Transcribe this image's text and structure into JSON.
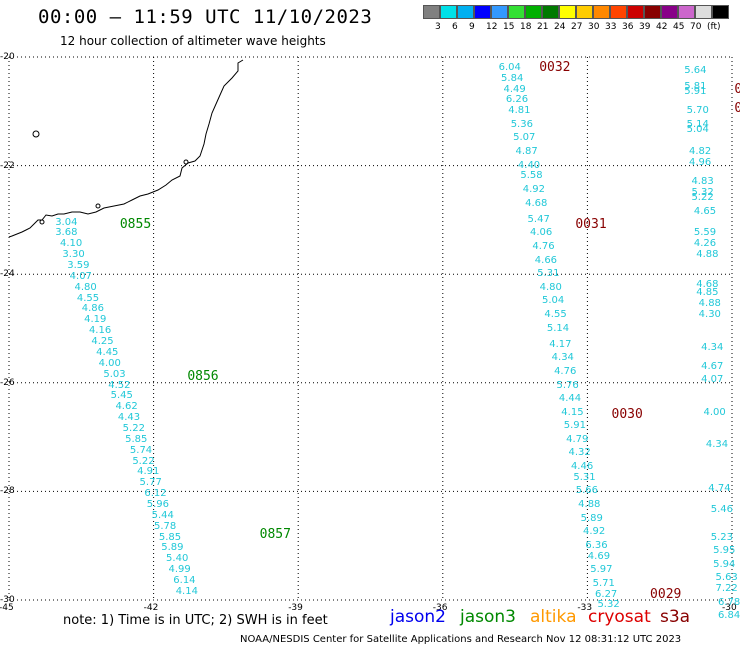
{
  "title": "00:00 – 11:59 UTC 11/10/2023",
  "subtitle": "12 hour collection of altimeter wave heights",
  "color_scale": {
    "colors": [
      "#808080",
      "#00e0e8",
      "#00b0f0",
      "#0000ff",
      "#3399ff",
      "#33e033",
      "#00b000",
      "#007a00",
      "#ffff00",
      "#ffcc00",
      "#ff8800",
      "#ff4400",
      "#cc0000",
      "#880000",
      "#880088",
      "#cc66cc",
      "#dddddd",
      "#000000"
    ],
    "labels": [
      "3",
      "6",
      "9",
      "12",
      "15",
      "18",
      "21",
      "24",
      "27",
      "30",
      "33",
      "36",
      "39",
      "42",
      "45",
      "70",
      "(ft)"
    ]
  },
  "map": {
    "lon_ticks": [
      "-45",
      "-42",
      "-39",
      "-36",
      "-33",
      "-30"
    ],
    "lat_ticks": [
      "-20",
      "-22",
      "-24",
      "-26",
      "-28",
      "-30"
    ],
    "lon_range": [
      -45,
      -30
    ],
    "lat_range": [
      -30,
      -20
    ],
    "grid": "dotted",
    "coastline": "Brazil (southeast coast)"
  },
  "tracks": [
    {
      "satellite": "jason3",
      "time_labels": [
        {
          "text": "0855",
          "lon": -42.7,
          "lat": -23.1
        },
        {
          "text": "0856",
          "lon": -41.3,
          "lat": -25.9
        },
        {
          "text": "0857",
          "lon": -39.8,
          "lat": -28.8
        }
      ],
      "points": [
        {
          "lon": -44.0,
          "lat": -23.05,
          "swh": "3.04"
        },
        {
          "lon": -44.0,
          "lat": -23.25,
          "swh": "3.68"
        },
        {
          "lon": -43.9,
          "lat": -23.45,
          "swh": "4.10"
        },
        {
          "lon": -43.85,
          "lat": -23.65,
          "swh": "3.30"
        },
        {
          "lon": -43.75,
          "lat": -23.85,
          "swh": "3.59"
        },
        {
          "lon": -43.7,
          "lat": -24.05,
          "swh": "4.07"
        },
        {
          "lon": -43.6,
          "lat": -24.25,
          "swh": "4.80"
        },
        {
          "lon": -43.55,
          "lat": -24.45,
          "swh": "4.55"
        },
        {
          "lon": -43.45,
          "lat": -24.65,
          "swh": "4.86"
        },
        {
          "lon": -43.4,
          "lat": -24.85,
          "swh": "4.19"
        },
        {
          "lon": -43.3,
          "lat": -25.05,
          "swh": "4.16"
        },
        {
          "lon": -43.25,
          "lat": -25.25,
          "swh": "4.25"
        },
        {
          "lon": -43.15,
          "lat": -25.45,
          "swh": "4.45"
        },
        {
          "lon": -43.1,
          "lat": -25.65,
          "swh": "4.00"
        },
        {
          "lon": -43.0,
          "lat": -25.85,
          "swh": "5.03"
        },
        {
          "lon": -42.9,
          "lat": -26.05,
          "swh": "4.52"
        },
        {
          "lon": -42.85,
          "lat": -26.25,
          "swh": "5.45"
        },
        {
          "lon": -42.75,
          "lat": -26.45,
          "swh": "4.62"
        },
        {
          "lon": -42.7,
          "lat": -26.65,
          "swh": "4.43"
        },
        {
          "lon": -42.6,
          "lat": -26.85,
          "swh": "5.22"
        },
        {
          "lon": -42.55,
          "lat": -27.05,
          "swh": "5.85"
        },
        {
          "lon": -42.45,
          "lat": -27.25,
          "swh": "5.74"
        },
        {
          "lon": -42.4,
          "lat": -27.45,
          "swh": "5.22"
        },
        {
          "lon": -42.3,
          "lat": -27.65,
          "swh": "4.91"
        },
        {
          "lon": -42.25,
          "lat": -27.85,
          "swh": "5.77"
        },
        {
          "lon": -42.15,
          "lat": -28.05,
          "swh": "6.12"
        },
        {
          "lon": -42.1,
          "lat": -28.25,
          "swh": "5.96"
        },
        {
          "lon": -42.0,
          "lat": -28.45,
          "swh": "5.44"
        },
        {
          "lon": -41.95,
          "lat": -28.65,
          "swh": "5.78"
        },
        {
          "lon": -41.85,
          "lat": -28.85,
          "swh": "5.85"
        },
        {
          "lon": -41.8,
          "lat": -29.05,
          "swh": "5.89"
        },
        {
          "lon": -41.7,
          "lat": -29.25,
          "swh": "5.40"
        },
        {
          "lon": -41.65,
          "lat": -29.45,
          "swh": "4.99"
        },
        {
          "lon": -41.55,
          "lat": -29.65,
          "swh": "6.14"
        },
        {
          "lon": -41.5,
          "lat": -29.85,
          "swh": "4.14"
        }
      ]
    },
    {
      "satellite": "cryosat",
      "time_labels": [
        {
          "text": "0032",
          "lon": -34.0,
          "lat": -20.2
        },
        {
          "text": "0031",
          "lon": -33.25,
          "lat": -23.1
        },
        {
          "text": "0030",
          "lon": -32.5,
          "lat": -26.6
        },
        {
          "text": "0029",
          "lon": -31.7,
          "lat": -29.9
        }
      ],
      "points": [
        {
          "lon": -34.8,
          "lat": -20.2,
          "swh": "6.04"
        },
        {
          "lon": -34.75,
          "lat": -20.4,
          "swh": "5.84"
        },
        {
          "lon": -34.7,
          "lat": -20.6,
          "swh": "4.49"
        },
        {
          "lon": -34.65,
          "lat": -20.8,
          "swh": "6.26"
        },
        {
          "lon": -34.6,
          "lat": -21.0,
          "swh": "4.81"
        },
        {
          "lon": -34.55,
          "lat": -21.25,
          "swh": "5.36"
        },
        {
          "lon": -34.5,
          "lat": -21.5,
          "swh": "5.07"
        },
        {
          "lon": -34.45,
          "lat": -21.75,
          "swh": "4.87"
        },
        {
          "lon": -34.4,
          "lat": -22.0,
          "swh": "4.40"
        },
        {
          "lon": -34.35,
          "lat": -22.2,
          "swh": "5.58"
        },
        {
          "lon": -34.3,
          "lat": -22.45,
          "swh": "4.92"
        },
        {
          "lon": -34.25,
          "lat": -22.7,
          "swh": "4.68"
        },
        {
          "lon": -34.2,
          "lat": -23.0,
          "swh": "5.47"
        },
        {
          "lon": -34.15,
          "lat": -23.25,
          "swh": "4.06"
        },
        {
          "lon": -34.1,
          "lat": -23.5,
          "swh": "4.76"
        },
        {
          "lon": -34.05,
          "lat": -23.75,
          "swh": "4.66"
        },
        {
          "lon": -34.0,
          "lat": -24.0,
          "swh": "5.31"
        },
        {
          "lon": -33.95,
          "lat": -24.25,
          "swh": "4.80"
        },
        {
          "lon": -33.9,
          "lat": -24.5,
          "swh": "5.04"
        },
        {
          "lon": -33.85,
          "lat": -24.75,
          "swh": "4.55"
        },
        {
          "lon": -33.8,
          "lat": -25.0,
          "swh": "5.14"
        },
        {
          "lon": -33.75,
          "lat": -25.3,
          "swh": "4.17"
        },
        {
          "lon": -33.7,
          "lat": -25.55,
          "swh": "4.34"
        },
        {
          "lon": -33.65,
          "lat": -25.8,
          "swh": "4.76"
        },
        {
          "lon": -33.6,
          "lat": -26.05,
          "swh": "5.76"
        },
        {
          "lon": -33.55,
          "lat": -26.3,
          "swh": "4.44"
        },
        {
          "lon": -33.5,
          "lat": -26.55,
          "swh": "4.15"
        },
        {
          "lon": -33.45,
          "lat": -26.8,
          "swh": "5.91"
        },
        {
          "lon": -33.4,
          "lat": -27.05,
          "swh": "4.79"
        },
        {
          "lon": -33.35,
          "lat": -27.3,
          "swh": "4.32"
        },
        {
          "lon": -33.3,
          "lat": -27.55,
          "swh": "4.46"
        },
        {
          "lon": -33.25,
          "lat": -27.75,
          "swh": "5.31"
        },
        {
          "lon": -33.2,
          "lat": -28.0,
          "swh": "5.66"
        },
        {
          "lon": -33.15,
          "lat": -28.25,
          "swh": "4.88"
        },
        {
          "lon": -33.1,
          "lat": -28.5,
          "swh": "5.89"
        },
        {
          "lon": -33.05,
          "lat": -28.75,
          "swh": "4.92"
        },
        {
          "lon": -33.0,
          "lat": -29.0,
          "swh": "6.36"
        },
        {
          "lon": -32.95,
          "lat": -29.2,
          "swh": "4.69"
        },
        {
          "lon": -32.9,
          "lat": -29.45,
          "swh": "5.97"
        },
        {
          "lon": -32.85,
          "lat": -29.7,
          "swh": "5.71"
        },
        {
          "lon": -32.8,
          "lat": -29.9,
          "swh": "6.27"
        },
        {
          "lon": -32.75,
          "lat": -30.1,
          "swh": "5.32"
        }
      ]
    },
    {
      "satellite": "cryosat",
      "time_labels": [],
      "points": [
        {
          "lon": -30.95,
          "lat": -20.25,
          "swh": "5.64"
        },
        {
          "lon": -30.95,
          "lat": -20.55,
          "swh": "5.81"
        },
        {
          "lon": -30.95,
          "lat": -20.65,
          "swh": "5.91"
        },
        {
          "lon": -30.9,
          "lat": -21.0,
          "swh": "5.70"
        },
        {
          "lon": -30.9,
          "lat": -21.25,
          "swh": "5.14"
        },
        {
          "lon": -30.9,
          "lat": -21.35,
          "swh": "5.04"
        },
        {
          "lon": -30.85,
          "lat": -21.75,
          "swh": "4.82"
        },
        {
          "lon": -30.85,
          "lat": -21.95,
          "swh": "4.96"
        },
        {
          "lon": -30.8,
          "lat": -22.3,
          "swh": "4.83"
        },
        {
          "lon": -30.8,
          "lat": -22.5,
          "swh": "5.32"
        },
        {
          "lon": -30.8,
          "lat": -22.6,
          "swh": "5.22"
        },
        {
          "lon": -30.75,
          "lat": -22.85,
          "swh": "4.65"
        },
        {
          "lon": -30.75,
          "lat": -23.25,
          "swh": "5.59"
        },
        {
          "lon": -30.75,
          "lat": -23.45,
          "swh": "4.26"
        },
        {
          "lon": -30.7,
          "lat": -23.65,
          "swh": "4.88"
        },
        {
          "lon": -30.7,
          "lat": -24.2,
          "swh": "4.68"
        },
        {
          "lon": -30.7,
          "lat": -24.35,
          "swh": "4.85"
        },
        {
          "lon": -30.65,
          "lat": -24.55,
          "swh": "4.88"
        },
        {
          "lon": -30.65,
          "lat": -24.75,
          "swh": "4.30"
        },
        {
          "lon": -30.6,
          "lat": -25.35,
          "swh": "4.34"
        },
        {
          "lon": -30.6,
          "lat": -25.7,
          "swh": "4.67"
        },
        {
          "lon": -30.6,
          "lat": -25.95,
          "swh": "4.07"
        },
        {
          "lon": -30.55,
          "lat": -26.55,
          "swh": "4.00"
        },
        {
          "lon": -30.5,
          "lat": -27.15,
          "swh": "4.34"
        },
        {
          "lon": -30.45,
          "lat": -27.95,
          "swh": "4.74"
        },
        {
          "lon": -30.4,
          "lat": -28.35,
          "swh": "5.46"
        },
        {
          "lon": -30.4,
          "lat": -28.85,
          "swh": "5.23"
        },
        {
          "lon": -30.35,
          "lat": -29.1,
          "swh": "5.95"
        },
        {
          "lon": -30.35,
          "lat": -29.35,
          "swh": "5.94"
        },
        {
          "lon": -30.3,
          "lat": -29.6,
          "swh": "5.63"
        },
        {
          "lon": -30.3,
          "lat": -29.8,
          "swh": "7.22"
        },
        {
          "lon": -30.25,
          "lat": -30.05,
          "swh": "6.78"
        },
        {
          "lon": -30.25,
          "lat": -30.3,
          "swh": "6.84"
        }
      ]
    }
  ],
  "edge_time_labels": [
    {
      "text": "0",
      "lon": -29.95,
      "lat": -20.6
    },
    {
      "text": "0",
      "lon": -29.95,
      "lat": -20.95
    }
  ],
  "note": "note:  1) Time is in UTC;  2) SWH is in feet",
  "satellites": [
    {
      "name": "jason2",
      "color": "#0000ee"
    },
    {
      "name": "jason3",
      "color": "#008800"
    },
    {
      "name": "altika",
      "color": "#ff9900"
    },
    {
      "name": "cryosat",
      "color": "#dd0000"
    },
    {
      "name": "s3a",
      "color": "#880000"
    }
  ],
  "credit": "NOAA/NESDIS Center for Satellite Applications and Research    Nov 12 08:31:12 UTC 2023",
  "colors": {
    "swh_text": "#21c8d8",
    "jason3_time": "#008800",
    "cryosat_time": "#880000"
  }
}
